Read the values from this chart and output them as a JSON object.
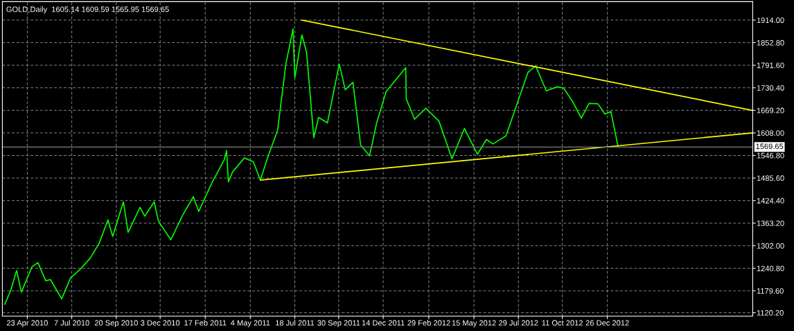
{
  "chart_data": {
    "type": "line",
    "title": "GOLD,Daily  1605.14 1609.59 1565.95 1569.65",
    "xlim": [
      "2010-03-12",
      "2013-08-28"
    ],
    "ylim": [
      1111,
      1964
    ],
    "yticks": [
      {
        "value": 1120.2,
        "label": "1120.20"
      },
      {
        "value": 1179.6,
        "label": "1179.60"
      },
      {
        "value": 1240.8,
        "label": "1240.80"
      },
      {
        "value": 1302.0,
        "label": "1302.00"
      },
      {
        "value": 1363.2,
        "label": "1363.20"
      },
      {
        "value": 1424.4,
        "label": "1424.40"
      },
      {
        "value": 1485.6,
        "label": "1485.60"
      },
      {
        "value": 1546.8,
        "label": "1546.80"
      },
      {
        "value": 1608.0,
        "label": "1608.00"
      },
      {
        "value": 1669.2,
        "label": "1669.20"
      },
      {
        "value": 1730.4,
        "label": "1730.40"
      },
      {
        "value": 1791.6,
        "label": "1791.60"
      },
      {
        "value": 1852.8,
        "label": "1852.80"
      },
      {
        "value": 1914.0,
        "label": "1914.00"
      }
    ],
    "xticks": [
      {
        "value": "2010-04-23",
        "label": "23 Apr 2010"
      },
      {
        "value": "2010-07-07",
        "label": "7 Jul 2010"
      },
      {
        "value": "2010-09-20",
        "label": "20 Sep 2010"
      },
      {
        "value": "2010-12-03",
        "label": "3 Dec 2010"
      },
      {
        "value": "2011-02-17",
        "label": "17 Feb 2011"
      },
      {
        "value": "2011-05-04",
        "label": "4 May 2011"
      },
      {
        "value": "2011-07-18",
        "label": "18 Jul 2011"
      },
      {
        "value": "2011-09-30",
        "label": "30 Sep 2011"
      },
      {
        "value": "2011-12-14",
        "label": "14 Dec 2011"
      },
      {
        "value": "2012-02-29",
        "label": "29 Feb 2012"
      },
      {
        "value": "2012-05-15",
        "label": "15 May 2012"
      },
      {
        "value": "2012-07-29",
        "label": "29 Jul 2012"
      },
      {
        "value": "2012-10-11",
        "label": "11 Oct 2012"
      },
      {
        "value": "2012-12-26",
        "label": "26 Dec 2012"
      }
    ],
    "grid": true,
    "line_style": "solid",
    "marker": "none",
    "ref_lines": [
      {
        "axis": "y",
        "value": 1569.65,
        "label": "1569.65",
        "color": "#808080"
      }
    ],
    "series": [
      {
        "color": "#00ff00",
        "x": [
          "2010-03-16",
          "2010-03-26",
          "2010-04-05",
          "2010-04-13",
          "2010-05-01",
          "2010-05-11",
          "2010-05-24",
          "2010-06-01",
          "2010-06-20",
          "2010-07-05",
          "2010-07-20",
          "2010-08-07",
          "2010-08-22",
          "2010-09-06",
          "2010-09-14",
          "2010-10-02",
          "2010-10-10",
          "2010-10-30",
          "2010-11-07",
          "2010-11-23",
          "2010-11-30",
          "2010-12-21",
          "2011-01-10",
          "2011-01-28",
          "2011-02-06",
          "2011-03-01",
          "2011-03-21",
          "2011-03-25",
          "2011-03-28",
          "2011-04-04",
          "2011-04-24",
          "2011-05-09",
          "2011-05-21",
          "2011-06-03",
          "2011-06-19",
          "2011-07-03",
          "2011-07-15",
          "2011-07-18",
          "2011-07-30",
          "2011-08-07",
          "2011-08-19",
          "2011-08-27",
          "2011-09-11",
          "2011-10-01",
          "2011-10-11",
          "2011-10-24",
          "2011-11-06",
          "2011-11-21",
          "2011-12-03",
          "2011-12-19",
          "2012-01-21",
          "2012-01-22",
          "2012-02-05",
          "2012-02-24",
          "2012-03-17",
          "2012-04-08",
          "2012-04-29",
          "2012-05-21",
          "2012-06-05",
          "2012-06-16",
          "2012-07-08",
          "2012-07-28",
          "2012-08-14",
          "2012-08-27",
          "2012-09-14",
          "2012-10-02",
          "2012-10-13",
          "2012-10-28",
          "2012-11-12",
          "2012-11-25",
          "2012-12-10",
          "2012-12-22",
          "2013-01-01",
          "2013-01-08",
          "2013-01-13"
        ],
        "values": [
          1143,
          1180,
          1235,
          1176,
          1245,
          1256,
          1207,
          1210,
          1158,
          1215,
          1236,
          1268,
          1308,
          1372,
          1327,
          1421,
          1338,
          1406,
          1382,
          1421,
          1369,
          1318,
          1385,
          1435,
          1395,
          1475,
          1535,
          1560,
          1475,
          1502,
          1540,
          1530,
          1480,
          1545,
          1615,
          1795,
          1890,
          1757,
          1874,
          1825,
          1595,
          1650,
          1635,
          1795,
          1725,
          1745,
          1575,
          1546,
          1635,
          1720,
          1785,
          1700,
          1645,
          1675,
          1640,
          1538,
          1620,
          1550,
          1590,
          1578,
          1600,
          1693,
          1772,
          1790,
          1722,
          1733,
          1730,
          1694,
          1648,
          1688,
          1687,
          1659,
          1666,
          1610,
          1570
        ]
      },
      {
        "color": "#ffff00",
        "x": [
          "2011-07-30",
          "2013-08-28"
        ],
        "values": [
          1914,
          1669
        ]
      },
      {
        "color": "#ffff00",
        "x": [
          "2011-05-21",
          "2013-08-28"
        ],
        "values": [
          1480,
          1608
        ]
      }
    ]
  }
}
